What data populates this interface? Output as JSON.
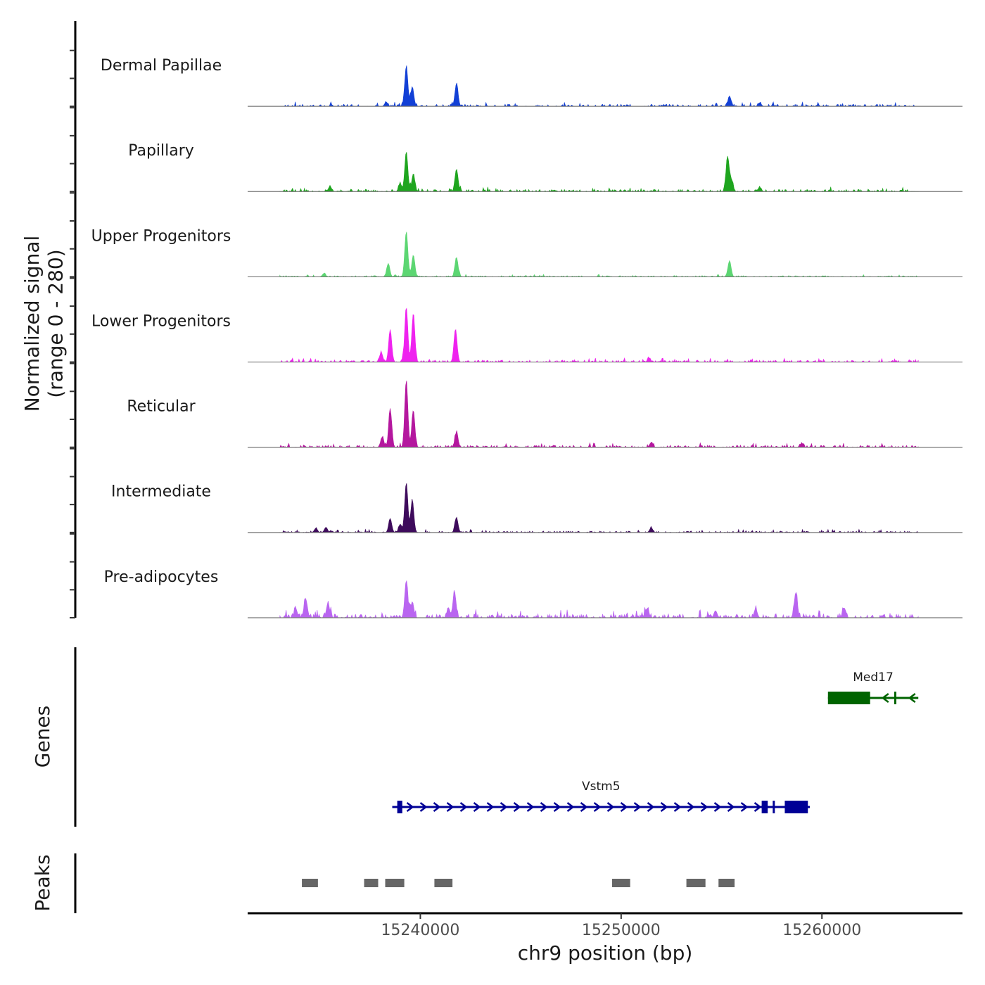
{
  "chart_data": {
    "type": "area",
    "title": "",
    "xlabel": "chr9 position (bp)",
    "ylabel": "Normalized signal\n(range 0 - 280)",
    "y_range": [
      0,
      280
    ],
    "x_range": [
      15231400,
      15267000
    ],
    "x_ticks": [
      15240000,
      15250000,
      15260000
    ],
    "x_tick_labels": [
      "15240000",
      "15250000",
      "15260000"
    ],
    "signal_extent": [
      15233000,
      15264800
    ],
    "tracks": [
      {
        "name": "Dermal Papillae",
        "color": "#1240d6",
        "noise": 9,
        "peaks": [
          {
            "pos": 15239300,
            "height": 168
          },
          {
            "pos": 15239600,
            "height": 82
          },
          {
            "pos": 15241800,
            "height": 95
          },
          {
            "pos": 15238300,
            "height": 18
          },
          {
            "pos": 15255400,
            "height": 40
          },
          {
            "pos": 15256900,
            "height": 15
          }
        ]
      },
      {
        "name": "Papillary",
        "color": "#1ea51e",
        "noise": 9,
        "peaks": [
          {
            "pos": 15239300,
            "height": 165
          },
          {
            "pos": 15239650,
            "height": 75
          },
          {
            "pos": 15239000,
            "height": 32
          },
          {
            "pos": 15241800,
            "height": 95
          },
          {
            "pos": 15235500,
            "height": 22
          },
          {
            "pos": 15255300,
            "height": 148
          },
          {
            "pos": 15255500,
            "height": 48
          },
          {
            "pos": 15256900,
            "height": 18
          }
        ]
      },
      {
        "name": "Upper Progenitors",
        "color": "#5cd672",
        "noise": 5,
        "peaks": [
          {
            "pos": 15239300,
            "height": 190
          },
          {
            "pos": 15239650,
            "height": 92
          },
          {
            "pos": 15238400,
            "height": 55
          },
          {
            "pos": 15241800,
            "height": 82
          },
          {
            "pos": 15255400,
            "height": 68
          },
          {
            "pos": 15235200,
            "height": 14
          }
        ]
      },
      {
        "name": "Lower Progenitors",
        "color": "#ef22ef",
        "noise": 8,
        "peaks": [
          {
            "pos": 15239300,
            "height": 230
          },
          {
            "pos": 15239650,
            "height": 205
          },
          {
            "pos": 15238500,
            "height": 130
          },
          {
            "pos": 15238050,
            "height": 40
          },
          {
            "pos": 15241750,
            "height": 140
          },
          {
            "pos": 15251400,
            "height": 16
          }
        ]
      },
      {
        "name": "Reticular",
        "color": "#b4179e",
        "noise": 9,
        "peaks": [
          {
            "pos": 15239300,
            "height": 280
          },
          {
            "pos": 15239650,
            "height": 155
          },
          {
            "pos": 15238500,
            "height": 160
          },
          {
            "pos": 15238100,
            "height": 42
          },
          {
            "pos": 15241800,
            "height": 62
          },
          {
            "pos": 15251500,
            "height": 20
          },
          {
            "pos": 15259000,
            "height": 16
          }
        ]
      },
      {
        "name": "Intermediate",
        "color": "#3e0b5c",
        "noise": 6,
        "peaks": [
          {
            "pos": 15239300,
            "height": 210
          },
          {
            "pos": 15239600,
            "height": 135
          },
          {
            "pos": 15238500,
            "height": 58
          },
          {
            "pos": 15239000,
            "height": 35
          },
          {
            "pos": 15241800,
            "height": 62
          },
          {
            "pos": 15235300,
            "height": 22
          },
          {
            "pos": 15234800,
            "height": 18
          },
          {
            "pos": 15251500,
            "height": 20
          }
        ]
      },
      {
        "name": "Pre-adipocytes",
        "color": "#b965f0",
        "noise": 16,
        "peaks": [
          {
            "pos": 15239300,
            "height": 158
          },
          {
            "pos": 15239600,
            "height": 68
          },
          {
            "pos": 15241700,
            "height": 110
          },
          {
            "pos": 15241400,
            "height": 40
          },
          {
            "pos": 15234300,
            "height": 75
          },
          {
            "pos": 15235400,
            "height": 62
          },
          {
            "pos": 15233800,
            "height": 35
          },
          {
            "pos": 15256700,
            "height": 38
          },
          {
            "pos": 15258700,
            "height": 108
          },
          {
            "pos": 15261100,
            "height": 42
          },
          {
            "pos": 15251300,
            "height": 40
          },
          {
            "pos": 15254700,
            "height": 30
          }
        ]
      }
    ],
    "genes_label": "Genes",
    "genes": [
      {
        "name": "Vstm5",
        "color": "#000096",
        "strand": "+",
        "start": 15238600,
        "end": 15259400,
        "exons": [
          [
            15238850,
            15239100
          ],
          [
            15257000,
            15257300
          ],
          [
            15257550,
            15257650
          ],
          [
            15258150,
            15259300
          ]
        ]
      },
      {
        "name": "Med17",
        "color": "#006400",
        "strand": "-",
        "start": 15260300,
        "end": 15264800,
        "exons": [
          [
            15260300,
            15262400
          ],
          [
            15263600,
            15263700
          ]
        ]
      }
    ],
    "peaks_label": "Peaks",
    "peak_regions": [
      [
        15234100,
        15234900
      ],
      [
        15237200,
        15237900
      ],
      [
        15238250,
        15239200
      ],
      [
        15240700,
        15241600
      ],
      [
        15249550,
        15250450
      ],
      [
        15253250,
        15254200
      ],
      [
        15254850,
        15255650
      ]
    ]
  }
}
